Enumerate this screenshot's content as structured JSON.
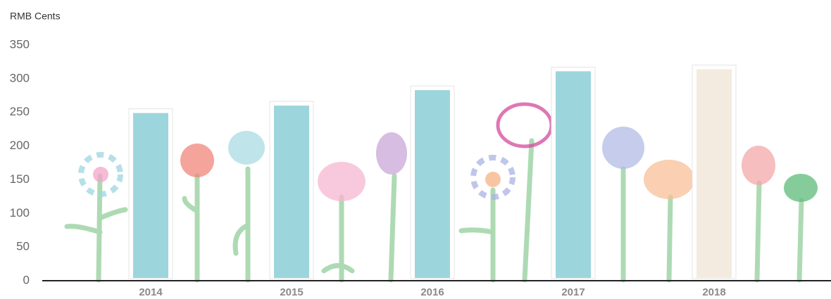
{
  "chart_data": {
    "type": "bar",
    "y_axis_label": "RMB Cents",
    "categories": [
      "2014",
      "2015",
      "2016",
      "2017",
      "2018"
    ],
    "values": [
      249,
      260,
      283,
      311,
      314
    ],
    "colors": [
      "#9dd5dc",
      "#9dd5dc",
      "#9dd5dc",
      "#9dd5dc",
      "#f3ebdf"
    ],
    "ylim": [
      0,
      350
    ],
    "yticks": [
      0,
      50,
      100,
      150,
      200,
      250,
      300,
      350
    ],
    "grid": false
  }
}
